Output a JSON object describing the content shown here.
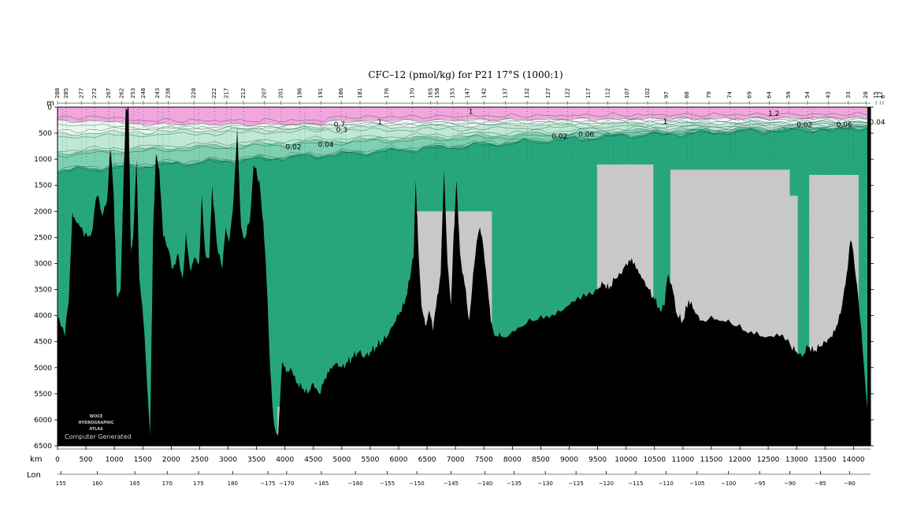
{
  "chart_data": {
    "type": "contour-section",
    "title": "CFC–12 (pmol/kg) for P21 17°S (1000:1)",
    "y_unit": "m",
    "x_unit": "km",
    "lon_label": "Lon",
    "ylim": [
      6500,
      0
    ],
    "xlim": [
      0,
      14300
    ],
    "y_ticks": [
      0,
      500,
      1000,
      1500,
      2000,
      2500,
      3000,
      3500,
      4000,
      4500,
      5000,
      5500,
      6000,
      6500
    ],
    "x_ticks": [
      0,
      500,
      1000,
      1500,
      2000,
      2500,
      3000,
      3500,
      4000,
      4500,
      5000,
      5500,
      6000,
      6500,
      7000,
      7500,
      8000,
      8500,
      9000,
      9500,
      10000,
      10500,
      11000,
      11500,
      12000,
      12500,
      13000,
      13500,
      14000
    ],
    "lon_ticks": [
      {
        "label": "155",
        "km": 60
      },
      {
        "label": "160",
        "km": 700
      },
      {
        "label": "165",
        "km": 1360
      },
      {
        "label": "170",
        "km": 1930
      },
      {
        "label": "175",
        "km": 2480
      },
      {
        "label": "180",
        "km": 3080
      },
      {
        "label": "−175",
        "km": 3700
      },
      {
        "label": "−170",
        "km": 4030
      },
      {
        "label": "−165",
        "km": 4640
      },
      {
        "label": "−160",
        "km": 5240
      },
      {
        "label": "−155",
        "km": 5800
      },
      {
        "label": "−150",
        "km": 6320
      },
      {
        "label": "−145",
        "km": 6920
      },
      {
        "label": "−140",
        "km": 7520
      },
      {
        "label": "−135",
        "km": 8030
      },
      {
        "label": "−130",
        "km": 8580
      },
      {
        "label": "−125",
        "km": 9120
      },
      {
        "label": "−120",
        "km": 9650
      },
      {
        "label": "−115",
        "km": 10170
      },
      {
        "label": "−110",
        "km": 10700
      },
      {
        "label": "−105",
        "km": 11250
      },
      {
        "label": "−100",
        "km": 11800
      },
      {
        "label": "−95",
        "km": 12350
      },
      {
        "label": "−90",
        "km": 12880
      },
      {
        "label": "−85",
        "km": 13420
      },
      {
        "label": "−80",
        "km": 13930
      }
    ],
    "stations": [
      {
        "label": "288",
        "km": 0
      },
      {
        "label": "285",
        "km": 150
      },
      {
        "label": "277",
        "km": 420
      },
      {
        "label": "272",
        "km": 650
      },
      {
        "label": "267",
        "km": 900
      },
      {
        "label": "262",
        "km": 1130
      },
      {
        "label": "253",
        "km": 1330
      },
      {
        "label": "248",
        "km": 1510
      },
      {
        "label": "243",
        "km": 1760
      },
      {
        "label": "238",
        "km": 1950
      },
      {
        "label": "228",
        "km": 2400
      },
      {
        "label": "222",
        "km": 2760
      },
      {
        "label": "217",
        "km": 2970
      },
      {
        "label": "212",
        "km": 3270
      },
      {
        "label": "207",
        "km": 3640
      },
      {
        "label": "201",
        "km": 3930
      },
      {
        "label": "196",
        "km": 4260
      },
      {
        "label": "191",
        "km": 4630
      },
      {
        "label": "186",
        "km": 4990
      },
      {
        "label": "181",
        "km": 5320
      },
      {
        "label": "176",
        "km": 5790
      },
      {
        "label": "170",
        "km": 6240
      },
      {
        "label": "165",
        "km": 6560
      },
      {
        "label": "158",
        "km": 6680
      },
      {
        "label": "153",
        "km": 6950
      },
      {
        "label": "147",
        "km": 7210
      },
      {
        "label": "142",
        "km": 7500
      },
      {
        "label": "137",
        "km": 7880
      },
      {
        "label": "132",
        "km": 8260
      },
      {
        "label": "127",
        "km": 8630
      },
      {
        "label": "122",
        "km": 8970
      },
      {
        "label": "117",
        "km": 9340
      },
      {
        "label": "112",
        "km": 9680
      },
      {
        "label": "107",
        "km": 10020
      },
      {
        "label": "102",
        "km": 10380
      },
      {
        "label": "97",
        "km": 10710
      },
      {
        "label": "88",
        "km": 11070
      },
      {
        "label": "79",
        "km": 11460
      },
      {
        "label": "74",
        "km": 11830
      },
      {
        "label": "69",
        "km": 12170
      },
      {
        "label": "64",
        "km": 12520
      },
      {
        "label": "59",
        "km": 12860
      },
      {
        "label": "54",
        "km": 13190
      },
      {
        "label": "43",
        "km": 13560
      },
      {
        "label": "33",
        "km": 13910
      },
      {
        "label": "28",
        "km": 14220
      },
      {
        "label": "15",
        "km": 14400
      },
      {
        "label": "12",
        "km": 14470
      },
      {
        "label": "6",
        "km": 14520
      }
    ],
    "contour_labels": [
      {
        "text": "1",
        "km": 5630,
        "depth": 290
      },
      {
        "text": "1",
        "km": 7230,
        "depth": 80
      },
      {
        "text": "1",
        "km": 10650,
        "depth": 270
      },
      {
        "text": "1.2",
        "km": 12500,
        "depth": 120
      },
      {
        "text": "0.7",
        "km": 4860,
        "depth": 330
      },
      {
        "text": "0.3",
        "km": 4900,
        "depth": 430
      },
      {
        "text": "0.02",
        "km": 4010,
        "depth": 760
      },
      {
        "text": "0.02",
        "km": 8690,
        "depth": 560
      },
      {
        "text": "0.02",
        "km": 13000,
        "depth": 340
      },
      {
        "text": "0.04",
        "km": 4580,
        "depth": 720
      },
      {
        "text": "0.06",
        "km": 9160,
        "depth": 520
      },
      {
        "text": "0.06",
        "km": 13700,
        "depth": 330
      },
      {
        "text": "0.04",
        "km": 14280,
        "depth": 290
      }
    ],
    "color_bands": [
      {
        "range": "> 1",
        "color": "#f2a6dd"
      },
      {
        "range": "0.3 – 1",
        "color": "#e9f7ef"
      },
      {
        "range": "0.06 – 0.3",
        "color": "#bfe8d5"
      },
      {
        "range": "0.02 – 0.06",
        "color": "#7fd0b0"
      },
      {
        "range": "< 0.02",
        "color": "#27a67e"
      }
    ],
    "bathymetry_depth": [
      {
        "km": 0,
        "depth": 4000
      },
      {
        "km": 60,
        "depth": 4200
      },
      {
        "km": 130,
        "depth": 4400
      },
      {
        "km": 200,
        "depth": 3700
      },
      {
        "km": 260,
        "depth": 2000
      },
      {
        "km": 330,
        "depth": 2200
      },
      {
        "km": 400,
        "depth": 2300
      },
      {
        "km": 470,
        "depth": 2500
      },
      {
        "km": 540,
        "depth": 2500
      },
      {
        "km": 600,
        "depth": 2400
      },
      {
        "km": 660,
        "depth": 1900
      },
      {
        "km": 720,
        "depth": 1700
      },
      {
        "km": 790,
        "depth": 2100
      },
      {
        "km": 870,
        "depth": 1800
      },
      {
        "km": 930,
        "depth": 800
      },
      {
        "km": 990,
        "depth": 1700
      },
      {
        "km": 1040,
        "depth": 3600
      },
      {
        "km": 1110,
        "depth": 3500
      },
      {
        "km": 1160,
        "depth": 1500
      },
      {
        "km": 1200,
        "depth": 0
      },
      {
        "km": 1250,
        "depth": 0
      },
      {
        "km": 1290,
        "depth": 2800
      },
      {
        "km": 1330,
        "depth": 2500
      },
      {
        "km": 1390,
        "depth": 1000
      },
      {
        "km": 1440,
        "depth": 3300
      },
      {
        "km": 1510,
        "depth": 4100
      },
      {
        "km": 1570,
        "depth": 5200
      },
      {
        "km": 1630,
        "depth": 6300
      },
      {
        "km": 1680,
        "depth": 2500
      },
      {
        "km": 1730,
        "depth": 900
      },
      {
        "km": 1790,
        "depth": 1200
      },
      {
        "km": 1860,
        "depth": 2500
      },
      {
        "km": 1940,
        "depth": 2700
      },
      {
        "km": 2030,
        "depth": 3100
      },
      {
        "km": 2120,
        "depth": 2800
      },
      {
        "km": 2200,
        "depth": 3300
      },
      {
        "km": 2260,
        "depth": 2400
      },
      {
        "km": 2330,
        "depth": 3100
      },
      {
        "km": 2400,
        "depth": 2900
      },
      {
        "km": 2490,
        "depth": 3000
      },
      {
        "km": 2540,
        "depth": 1700
      },
      {
        "km": 2600,
        "depth": 2800
      },
      {
        "km": 2670,
        "depth": 2900
      },
      {
        "km": 2720,
        "depth": 1500
      },
      {
        "km": 2800,
        "depth": 2600
      },
      {
        "km": 2900,
        "depth": 3100
      },
      {
        "km": 2960,
        "depth": 2300
      },
      {
        "km": 3020,
        "depth": 2600
      },
      {
        "km": 3100,
        "depth": 1700
      },
      {
        "km": 3160,
        "depth": 400
      },
      {
        "km": 3230,
        "depth": 2300
      },
      {
        "km": 3300,
        "depth": 2500
      },
      {
        "km": 3380,
        "depth": 2200
      },
      {
        "km": 3450,
        "depth": 1100
      },
      {
        "km": 3510,
        "depth": 1300
      },
      {
        "km": 3560,
        "depth": 1500
      },
      {
        "km": 3620,
        "depth": 2200
      },
      {
        "km": 3680,
        "depth": 3400
      },
      {
        "km": 3740,
        "depth": 5000
      },
      {
        "km": 3810,
        "depth": 6100
      },
      {
        "km": 3880,
        "depth": 6300
      },
      {
        "km": 3950,
        "depth": 4900
      },
      {
        "km": 4020,
        "depth": 5100
      },
      {
        "km": 4100,
        "depth": 5000
      },
      {
        "km": 4200,
        "depth": 5300
      },
      {
        "km": 4300,
        "depth": 5400
      },
      {
        "km": 4400,
        "depth": 5500
      },
      {
        "km": 4500,
        "depth": 5300
      },
      {
        "km": 4600,
        "depth": 5500
      },
      {
        "km": 4700,
        "depth": 5200
      },
      {
        "km": 4800,
        "depth": 5000
      },
      {
        "km": 4900,
        "depth": 4900
      },
      {
        "km": 5000,
        "depth": 5000
      },
      {
        "km": 5100,
        "depth": 4900
      },
      {
        "km": 5200,
        "depth": 4800
      },
      {
        "km": 5300,
        "depth": 4700
      },
      {
        "km": 5400,
        "depth": 4800
      },
      {
        "km": 5500,
        "depth": 4700
      },
      {
        "km": 5600,
        "depth": 4600
      },
      {
        "km": 5700,
        "depth": 4500
      },
      {
        "km": 5800,
        "depth": 4400
      },
      {
        "km": 5900,
        "depth": 4200
      },
      {
        "km": 6000,
        "depth": 4000
      },
      {
        "km": 6100,
        "depth": 3800
      },
      {
        "km": 6200,
        "depth": 3300
      },
      {
        "km": 6260,
        "depth": 2900
      },
      {
        "km": 6300,
        "depth": 1400
      },
      {
        "km": 6340,
        "depth": 2500
      },
      {
        "km": 6400,
        "depth": 3800
      },
      {
        "km": 6470,
        "depth": 4200
      },
      {
        "km": 6540,
        "depth": 3900
      },
      {
        "km": 6600,
        "depth": 4300
      },
      {
        "km": 6680,
        "depth": 3600
      },
      {
        "km": 6740,
        "depth": 3200
      },
      {
        "km": 6800,
        "depth": 1200
      },
      {
        "km": 6860,
        "depth": 3000
      },
      {
        "km": 6920,
        "depth": 3800
      },
      {
        "km": 6970,
        "depth": 2400
      },
      {
        "km": 7020,
        "depth": 1400
      },
      {
        "km": 7080,
        "depth": 2800
      },
      {
        "km": 7160,
        "depth": 3400
      },
      {
        "km": 7240,
        "depth": 4100
      },
      {
        "km": 7310,
        "depth": 3200
      },
      {
        "km": 7370,
        "depth": 2600
      },
      {
        "km": 7430,
        "depth": 2300
      },
      {
        "km": 7480,
        "depth": 2600
      },
      {
        "km": 7550,
        "depth": 3300
      },
      {
        "km": 7620,
        "depth": 4100
      },
      {
        "km": 7700,
        "depth": 4400
      },
      {
        "km": 7800,
        "depth": 4400
      },
      {
        "km": 8000,
        "depth": 4300
      },
      {
        "km": 8200,
        "depth": 4200
      },
      {
        "km": 8400,
        "depth": 4100
      },
      {
        "km": 8600,
        "depth": 4000
      },
      {
        "km": 8800,
        "depth": 3900
      },
      {
        "km": 9000,
        "depth": 3800
      },
      {
        "km": 9200,
        "depth": 3700
      },
      {
        "km": 9400,
        "depth": 3600
      },
      {
        "km": 9500,
        "depth": 3500
      },
      {
        "km": 9600,
        "depth": 3400
      },
      {
        "km": 9700,
        "depth": 3500
      },
      {
        "km": 9800,
        "depth": 3300
      },
      {
        "km": 9900,
        "depth": 3200
      },
      {
        "km": 10000,
        "depth": 3000
      },
      {
        "km": 10100,
        "depth": 2900
      },
      {
        "km": 10200,
        "depth": 3100
      },
      {
        "km": 10300,
        "depth": 3300
      },
      {
        "km": 10400,
        "depth": 3500
      },
      {
        "km": 10500,
        "depth": 3700
      },
      {
        "km": 10600,
        "depth": 3900
      },
      {
        "km": 10680,
        "depth": 3800
      },
      {
        "km": 10740,
        "depth": 3200
      },
      {
        "km": 10800,
        "depth": 3400
      },
      {
        "km": 10900,
        "depth": 4000
      },
      {
        "km": 11000,
        "depth": 4100
      },
      {
        "km": 11100,
        "depth": 3700
      },
      {
        "km": 11200,
        "depth": 3900
      },
      {
        "km": 11300,
        "depth": 4100
      },
      {
        "km": 11500,
        "depth": 4000
      },
      {
        "km": 11700,
        "depth": 4100
      },
      {
        "km": 11900,
        "depth": 4200
      },
      {
        "km": 12100,
        "depth": 4300
      },
      {
        "km": 12300,
        "depth": 4300
      },
      {
        "km": 12500,
        "depth": 4400
      },
      {
        "km": 12700,
        "depth": 4400
      },
      {
        "km": 12900,
        "depth": 4600
      },
      {
        "km": 13000,
        "depth": 4700
      },
      {
        "km": 13100,
        "depth": 4800
      },
      {
        "km": 13200,
        "depth": 4600
      },
      {
        "km": 13300,
        "depth": 4700
      },
      {
        "km": 13400,
        "depth": 4600
      },
      {
        "km": 13500,
        "depth": 4500
      },
      {
        "km": 13600,
        "depth": 4400
      },
      {
        "km": 13700,
        "depth": 4200
      },
      {
        "km": 13800,
        "depth": 3800
      },
      {
        "km": 13880,
        "depth": 3200
      },
      {
        "km": 13940,
        "depth": 2600
      },
      {
        "km": 14000,
        "depth": 2800
      },
      {
        "km": 14060,
        "depth": 3400
      },
      {
        "km": 14120,
        "depth": 4100
      },
      {
        "km": 14200,
        "depth": 5200
      },
      {
        "km": 14260,
        "depth": 6000
      },
      {
        "km": 14300,
        "depth": 800
      }
    ],
    "no_data_regions": [
      {
        "km_start": 6290,
        "km_end": 7640,
        "depth_start": 2000
      },
      {
        "km_start": 9490,
        "km_end": 10480,
        "depth_start": 1100
      },
      {
        "km_start": 10780,
        "km_end": 12880,
        "depth_start": 1200
      },
      {
        "km_start": 12880,
        "km_end": 13020,
        "depth_start": 1700
      },
      {
        "km_start": 13220,
        "km_end": 14090,
        "depth_start": 1300
      },
      {
        "km_start": 3870,
        "km_end": 3930,
        "depth_start": 5750
      }
    ],
    "watermark": {
      "lines": [
        "WOCE",
        "HYDROGRAPHIC",
        "ATLAS"
      ],
      "tag": "Computer Generated"
    }
  }
}
